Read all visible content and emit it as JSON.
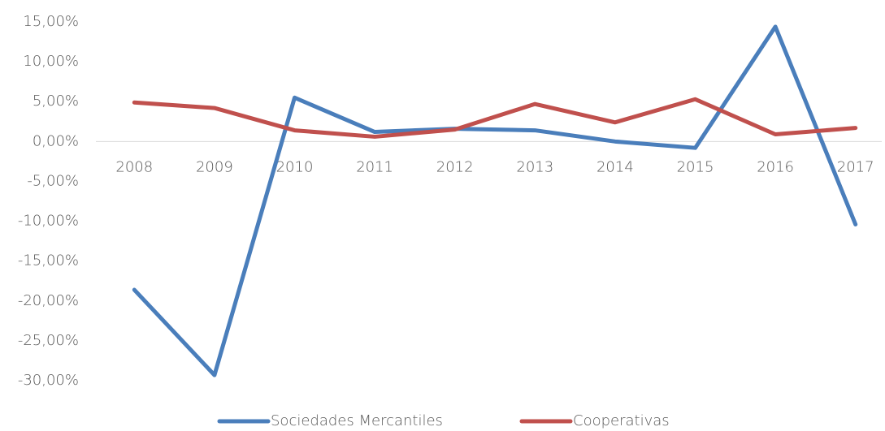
{
  "chart_data": {
    "type": "line",
    "categories": [
      "2008",
      "2009",
      "2010",
      "2011",
      "2012",
      "2013",
      "2014",
      "2015",
      "2016",
      "2017"
    ],
    "series": [
      {
        "name": "Sociedades Mercantiles",
        "color": "#4a7ebb",
        "values": [
          -18.6,
          -29.3,
          5.5,
          1.2,
          1.6,
          1.4,
          0.0,
          -0.8,
          14.4,
          -10.4
        ]
      },
      {
        "name": "Cooperativas",
        "color": "#c0504d",
        "values": [
          4.9,
          4.2,
          1.4,
          0.6,
          1.5,
          4.7,
          2.4,
          5.3,
          0.9,
          1.7
        ]
      }
    ],
    "ylim": [
      -30,
      15
    ],
    "yticks": [
      {
        "value": 15,
        "label": "15,00%"
      },
      {
        "value": 10,
        "label": "10,00%"
      },
      {
        "value": 5,
        "label": "5,00%"
      },
      {
        "value": 0,
        "label": "0,00%"
      },
      {
        "value": -5,
        "label": "-5,00%"
      },
      {
        "value": -10,
        "label": "-10,00%"
      },
      {
        "value": -15,
        "label": "-15,00%"
      },
      {
        "value": -20,
        "label": "-20,00%"
      },
      {
        "value": -25,
        "label": "-25,00%"
      },
      {
        "value": -30,
        "label": "-30,00%"
      }
    ],
    "legend": "bottom"
  }
}
